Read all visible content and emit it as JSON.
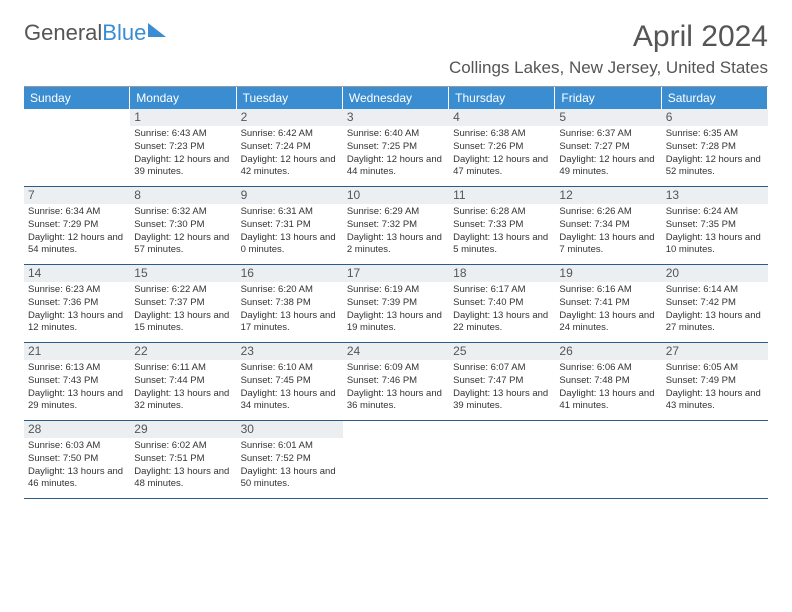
{
  "logo": {
    "part1": "General",
    "part2": "Blue"
  },
  "title": "April 2024",
  "location": "Collings Lakes, New Jersey, United States",
  "day_headers": [
    "Sunday",
    "Monday",
    "Tuesday",
    "Wednesday",
    "Thursday",
    "Friday",
    "Saturday"
  ],
  "colors": {
    "header_bg": "#3b8dd1",
    "header_fg": "#ffffff",
    "daynum_bg": "#eceff1",
    "cell_border": "#2b5c87",
    "text": "#333333"
  },
  "weeks": [
    [
      {
        "n": "",
        "sr": "",
        "ss": "",
        "dl": ""
      },
      {
        "n": "1",
        "sr": "Sunrise: 6:43 AM",
        "ss": "Sunset: 7:23 PM",
        "dl": "Daylight: 12 hours and 39 minutes."
      },
      {
        "n": "2",
        "sr": "Sunrise: 6:42 AM",
        "ss": "Sunset: 7:24 PM",
        "dl": "Daylight: 12 hours and 42 minutes."
      },
      {
        "n": "3",
        "sr": "Sunrise: 6:40 AM",
        "ss": "Sunset: 7:25 PM",
        "dl": "Daylight: 12 hours and 44 minutes."
      },
      {
        "n": "4",
        "sr": "Sunrise: 6:38 AM",
        "ss": "Sunset: 7:26 PM",
        "dl": "Daylight: 12 hours and 47 minutes."
      },
      {
        "n": "5",
        "sr": "Sunrise: 6:37 AM",
        "ss": "Sunset: 7:27 PM",
        "dl": "Daylight: 12 hours and 49 minutes."
      },
      {
        "n": "6",
        "sr": "Sunrise: 6:35 AM",
        "ss": "Sunset: 7:28 PM",
        "dl": "Daylight: 12 hours and 52 minutes."
      }
    ],
    [
      {
        "n": "7",
        "sr": "Sunrise: 6:34 AM",
        "ss": "Sunset: 7:29 PM",
        "dl": "Daylight: 12 hours and 54 minutes."
      },
      {
        "n": "8",
        "sr": "Sunrise: 6:32 AM",
        "ss": "Sunset: 7:30 PM",
        "dl": "Daylight: 12 hours and 57 minutes."
      },
      {
        "n": "9",
        "sr": "Sunrise: 6:31 AM",
        "ss": "Sunset: 7:31 PM",
        "dl": "Daylight: 13 hours and 0 minutes."
      },
      {
        "n": "10",
        "sr": "Sunrise: 6:29 AM",
        "ss": "Sunset: 7:32 PM",
        "dl": "Daylight: 13 hours and 2 minutes."
      },
      {
        "n": "11",
        "sr": "Sunrise: 6:28 AM",
        "ss": "Sunset: 7:33 PM",
        "dl": "Daylight: 13 hours and 5 minutes."
      },
      {
        "n": "12",
        "sr": "Sunrise: 6:26 AM",
        "ss": "Sunset: 7:34 PM",
        "dl": "Daylight: 13 hours and 7 minutes."
      },
      {
        "n": "13",
        "sr": "Sunrise: 6:24 AM",
        "ss": "Sunset: 7:35 PM",
        "dl": "Daylight: 13 hours and 10 minutes."
      }
    ],
    [
      {
        "n": "14",
        "sr": "Sunrise: 6:23 AM",
        "ss": "Sunset: 7:36 PM",
        "dl": "Daylight: 13 hours and 12 minutes."
      },
      {
        "n": "15",
        "sr": "Sunrise: 6:22 AM",
        "ss": "Sunset: 7:37 PM",
        "dl": "Daylight: 13 hours and 15 minutes."
      },
      {
        "n": "16",
        "sr": "Sunrise: 6:20 AM",
        "ss": "Sunset: 7:38 PM",
        "dl": "Daylight: 13 hours and 17 minutes."
      },
      {
        "n": "17",
        "sr": "Sunrise: 6:19 AM",
        "ss": "Sunset: 7:39 PM",
        "dl": "Daylight: 13 hours and 19 minutes."
      },
      {
        "n": "18",
        "sr": "Sunrise: 6:17 AM",
        "ss": "Sunset: 7:40 PM",
        "dl": "Daylight: 13 hours and 22 minutes."
      },
      {
        "n": "19",
        "sr": "Sunrise: 6:16 AM",
        "ss": "Sunset: 7:41 PM",
        "dl": "Daylight: 13 hours and 24 minutes."
      },
      {
        "n": "20",
        "sr": "Sunrise: 6:14 AM",
        "ss": "Sunset: 7:42 PM",
        "dl": "Daylight: 13 hours and 27 minutes."
      }
    ],
    [
      {
        "n": "21",
        "sr": "Sunrise: 6:13 AM",
        "ss": "Sunset: 7:43 PM",
        "dl": "Daylight: 13 hours and 29 minutes."
      },
      {
        "n": "22",
        "sr": "Sunrise: 6:11 AM",
        "ss": "Sunset: 7:44 PM",
        "dl": "Daylight: 13 hours and 32 minutes."
      },
      {
        "n": "23",
        "sr": "Sunrise: 6:10 AM",
        "ss": "Sunset: 7:45 PM",
        "dl": "Daylight: 13 hours and 34 minutes."
      },
      {
        "n": "24",
        "sr": "Sunrise: 6:09 AM",
        "ss": "Sunset: 7:46 PM",
        "dl": "Daylight: 13 hours and 36 minutes."
      },
      {
        "n": "25",
        "sr": "Sunrise: 6:07 AM",
        "ss": "Sunset: 7:47 PM",
        "dl": "Daylight: 13 hours and 39 minutes."
      },
      {
        "n": "26",
        "sr": "Sunrise: 6:06 AM",
        "ss": "Sunset: 7:48 PM",
        "dl": "Daylight: 13 hours and 41 minutes."
      },
      {
        "n": "27",
        "sr": "Sunrise: 6:05 AM",
        "ss": "Sunset: 7:49 PM",
        "dl": "Daylight: 13 hours and 43 minutes."
      }
    ],
    [
      {
        "n": "28",
        "sr": "Sunrise: 6:03 AM",
        "ss": "Sunset: 7:50 PM",
        "dl": "Daylight: 13 hours and 46 minutes."
      },
      {
        "n": "29",
        "sr": "Sunrise: 6:02 AM",
        "ss": "Sunset: 7:51 PM",
        "dl": "Daylight: 13 hours and 48 minutes."
      },
      {
        "n": "30",
        "sr": "Sunrise: 6:01 AM",
        "ss": "Sunset: 7:52 PM",
        "dl": "Daylight: 13 hours and 50 minutes."
      },
      {
        "n": "",
        "sr": "",
        "ss": "",
        "dl": ""
      },
      {
        "n": "",
        "sr": "",
        "ss": "",
        "dl": ""
      },
      {
        "n": "",
        "sr": "",
        "ss": "",
        "dl": ""
      },
      {
        "n": "",
        "sr": "",
        "ss": "",
        "dl": ""
      }
    ]
  ]
}
